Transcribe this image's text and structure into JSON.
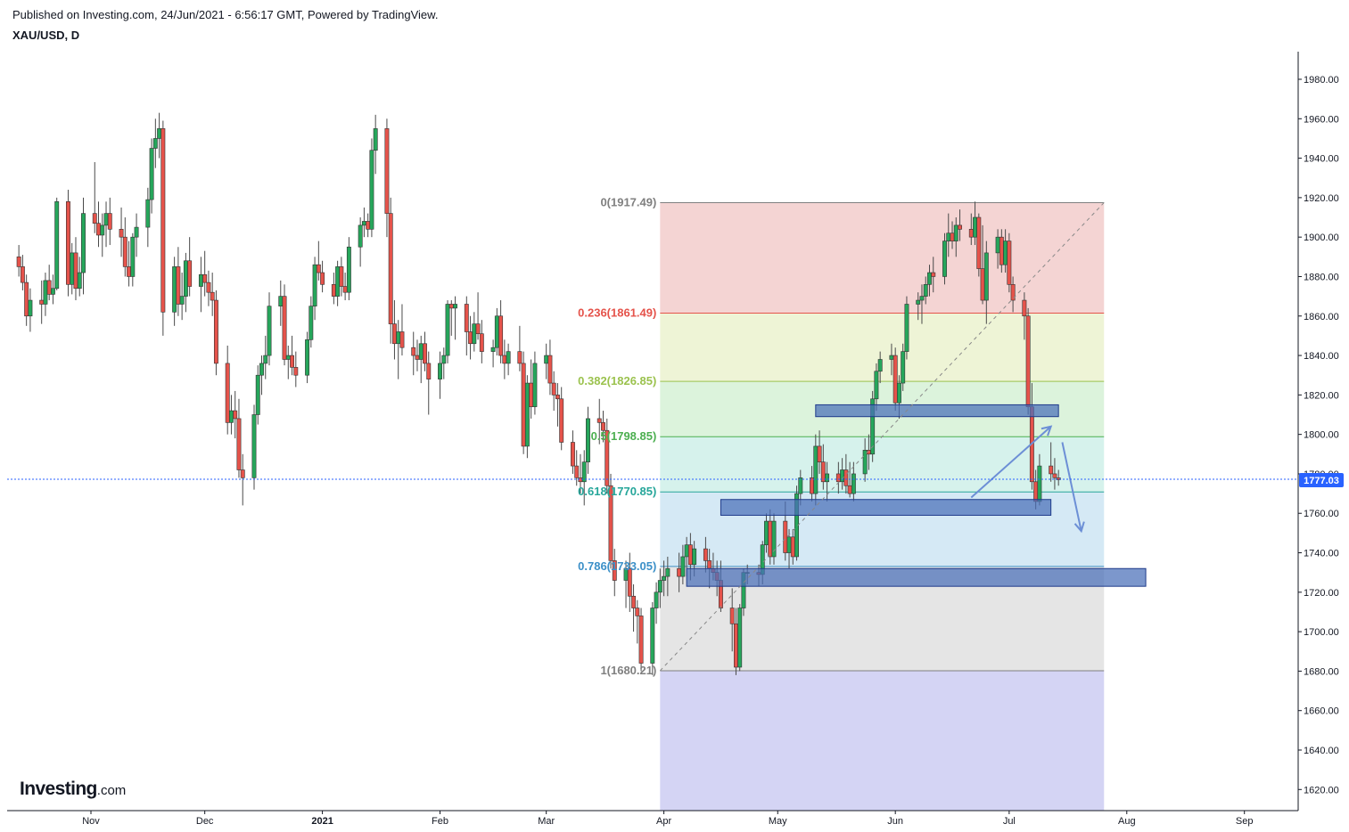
{
  "header": {
    "published": "Published on Investing.com, 24/Jun/2021 - 6:56:17 GMT, Powered by TradingView.",
    "symbol": "XAU/USD, D"
  },
  "logo": {
    "brand": "Investing",
    "tld": ".com"
  },
  "colors": {
    "up": "#26a65b",
    "down": "#e5534b",
    "wick": "#4a4a4a",
    "price_line": "#2962ff",
    "zone_fill": "#4a6fb8",
    "zone_stroke": "#1e3a8a",
    "arrow": "#6c8fd6"
  },
  "chart_data": {
    "type": "candlestick",
    "instrument": "XAU/USD",
    "interval": "D",
    "x_axis": {
      "ticks": [
        "Nov",
        "Dec",
        "2021",
        "Feb",
        "Mar",
        "Apr",
        "May",
        "Jun",
        "Jul",
        "Aug",
        "Sep"
      ]
    },
    "y_axis": {
      "range": [
        1612,
        1996
      ],
      "ticks": [
        "1620.00",
        "1640.00",
        "1660.00",
        "1680.00",
        "1700.00",
        "1720.00",
        "1740.00",
        "1760.00",
        "1780.00",
        "1800.00",
        "1820.00",
        "1840.00",
        "1860.00",
        "1880.00",
        "1900.00",
        "1920.00",
        "1940.00",
        "1960.00",
        "1980.00"
      ]
    },
    "last_price": {
      "value": 1777.03,
      "label": "1777.03"
    },
    "fibonacci": {
      "from": "2021-03-31",
      "to": "2021-07-26",
      "levels": [
        {
          "label": "0(1917.49)",
          "ratio": 0,
          "price": 1917.49,
          "color": "#808080",
          "fill": "#f4d4d3"
        },
        {
          "label": "0.236(1861.49)",
          "ratio": 0.236,
          "price": 1861.49,
          "color": "#e5534b",
          "fill": "#eef4d6"
        },
        {
          "label": "0.382(1826.85)",
          "ratio": 0.382,
          "price": 1826.85,
          "color": "#9bc24e",
          "fill": "#dcf3dc"
        },
        {
          "label": "0.5(1798.85)",
          "ratio": 0.5,
          "price": 1798.85,
          "color": "#4caf50",
          "fill": "#d6f2ec"
        },
        {
          "label": "0.618(1770.85)",
          "ratio": 0.618,
          "price": 1770.85,
          "color": "#26a69a",
          "fill": "#d5e9f5"
        },
        {
          "label": "0.786(1733.05)",
          "ratio": 0.786,
          "price": 1733.05,
          "color": "#3c90c8",
          "fill": "#e5e5e5"
        },
        {
          "label": "1(1680.21)",
          "ratio": 1,
          "price": 1680.21,
          "color": "#808080",
          "fill": "#d4d4f4"
        }
      ]
    },
    "zones": [
      {
        "from": "2021-05-11",
        "to": "2021-07-14",
        "low": 1809,
        "high": 1815
      },
      {
        "from": "2021-04-16",
        "to": "2021-07-12",
        "low": 1759,
        "high": 1767
      },
      {
        "from": "2021-04-07",
        "to": "2021-08-06",
        "low": 1723,
        "high": 1732
      }
    ],
    "arrows": [
      {
        "from_date": "2021-06-21",
        "from_price": 1768,
        "to_date": "2021-07-12",
        "to_price": 1804
      },
      {
        "from_date": "2021-07-15",
        "to_date": "2021-07-20",
        "from_price": 1796,
        "to_price": 1751
      }
    ],
    "series_start_date": "2020-10-13",
    "candles": [
      [
        1890,
        1896,
        1880,
        1885
      ],
      [
        1885,
        1891,
        1873,
        1877
      ],
      [
        1877,
        1881,
        1855,
        1860
      ],
      [
        1860,
        1874,
        1852,
        1868
      ],
      [
        1868,
        1878,
        1856,
        1866
      ],
      [
        1866,
        1882,
        1860,
        1878
      ],
      [
        1878,
        1886,
        1868,
        1871
      ],
      [
        1871,
        1881,
        1866,
        1874
      ],
      [
        1874,
        1920,
        1873,
        1918
      ],
      [
        1918,
        1924,
        1870,
        1876
      ],
      [
        1876,
        1897,
        1871,
        1892
      ],
      [
        1892,
        1900,
        1868,
        1874
      ],
      [
        1874,
        1890,
        1870,
        1882
      ],
      [
        1882,
        1920,
        1871,
        1912
      ],
      [
        1912,
        1938,
        1902,
        1907
      ],
      [
        1907,
        1918,
        1895,
        1901
      ],
      [
        1901,
        1912,
        1890,
        1906
      ],
      [
        1906,
        1918,
        1895,
        1912
      ],
      [
        1912,
        1920,
        1896,
        1904
      ],
      [
        1904,
        1915,
        1890,
        1900
      ],
      [
        1900,
        1910,
        1880,
        1885
      ],
      [
        1885,
        1898,
        1875,
        1880
      ],
      [
        1880,
        1902,
        1875,
        1900
      ],
      [
        1900,
        1912,
        1890,
        1905
      ],
      [
        1905,
        1925,
        1895,
        1919
      ],
      [
        1919,
        1950,
        1912,
        1945
      ],
      [
        1945,
        1960,
        1935,
        1950
      ],
      [
        1950,
        1963,
        1940,
        1955
      ],
      [
        1955,
        1959,
        1850,
        1862
      ],
      [
        1862,
        1890,
        1855,
        1885
      ],
      [
        1885,
        1895,
        1860,
        1866
      ],
      [
        1866,
        1882,
        1858,
        1870
      ],
      [
        1870,
        1892,
        1862,
        1888
      ],
      [
        1888,
        1900,
        1870,
        1875
      ],
      [
        1875,
        1890,
        1862,
        1881
      ],
      [
        1881,
        1893,
        1870,
        1877
      ],
      [
        1877,
        1883,
        1865,
        1872
      ],
      [
        1872,
        1882,
        1860,
        1868
      ],
      [
        1868,
        1873,
        1830,
        1836
      ],
      [
        1836,
        1845,
        1800,
        1806
      ],
      [
        1806,
        1820,
        1800,
        1812
      ],
      [
        1812,
        1822,
        1798,
        1808
      ],
      [
        1808,
        1818,
        1778,
        1782
      ],
      [
        1782,
        1790,
        1764,
        1778
      ],
      [
        1778,
        1815,
        1772,
        1810
      ],
      [
        1810,
        1835,
        1805,
        1830
      ],
      [
        1830,
        1840,
        1820,
        1836
      ],
      [
        1836,
        1850,
        1828,
        1840
      ],
      [
        1840,
        1872,
        1835,
        1865
      ],
      [
        1865,
        1878,
        1855,
        1870
      ],
      [
        1870,
        1876,
        1835,
        1838
      ],
      [
        1838,
        1845,
        1828,
        1840
      ],
      [
        1840,
        1850,
        1830,
        1834
      ],
      [
        1834,
        1842,
        1824,
        1830
      ],
      [
        1830,
        1852,
        1826,
        1848
      ],
      [
        1848,
        1870,
        1844,
        1865
      ],
      [
        1865,
        1890,
        1858,
        1886
      ],
      [
        1886,
        1898,
        1878,
        1882
      ],
      [
        1882,
        1888,
        1872,
        1876
      ],
      [
        1876,
        1882,
        1866,
        1870
      ],
      [
        1870,
        1888,
        1865,
        1885
      ],
      [
        1885,
        1890,
        1870,
        1875
      ],
      [
        1875,
        1882,
        1868,
        1872
      ],
      [
        1872,
        1900,
        1868,
        1895
      ],
      [
        1895,
        1910,
        1885,
        1906
      ],
      [
        1906,
        1915,
        1900,
        1908
      ],
      [
        1908,
        1912,
        1900,
        1904
      ],
      [
        1904,
        1950,
        1900,
        1944
      ],
      [
        1944,
        1962,
        1932,
        1955
      ],
      [
        1955,
        1960,
        1900,
        1912
      ],
      [
        1912,
        1920,
        1846,
        1856
      ],
      [
        1856,
        1868,
        1838,
        1846
      ],
      [
        1846,
        1858,
        1828,
        1852
      ],
      [
        1852,
        1866,
        1840,
        1844
      ],
      [
        1844,
        1852,
        1830,
        1840
      ],
      [
        1840,
        1848,
        1832,
        1838
      ],
      [
        1838,
        1850,
        1826,
        1846
      ],
      [
        1846,
        1852,
        1832,
        1836
      ],
      [
        1836,
        1842,
        1810,
        1828
      ],
      [
        1828,
        1842,
        1818,
        1836
      ],
      [
        1836,
        1844,
        1828,
        1840
      ],
      [
        1840,
        1868,
        1836,
        1866
      ],
      [
        1866,
        1868,
        1850,
        1864
      ],
      [
        1864,
        1870,
        1848,
        1866
      ],
      [
        1866,
        1870,
        1840,
        1852
      ],
      [
        1852,
        1860,
        1838,
        1846
      ],
      [
        1846,
        1862,
        1842,
        1856
      ],
      [
        1856,
        1872,
        1848,
        1851
      ],
      [
        1851,
        1858,
        1836,
        1842
      ],
      [
        1842,
        1848,
        1834,
        1844
      ],
      [
        1844,
        1864,
        1840,
        1860
      ],
      [
        1860,
        1868,
        1836,
        1840
      ],
      [
        1840,
        1848,
        1828,
        1836
      ],
      [
        1836,
        1846,
        1830,
        1842
      ],
      [
        1842,
        1855,
        1832,
        1836
      ],
      [
        1836,
        1842,
        1790,
        1794
      ],
      [
        1794,
        1830,
        1788,
        1826
      ],
      [
        1826,
        1838,
        1808,
        1814
      ],
      [
        1814,
        1842,
        1810,
        1836
      ],
      [
        1836,
        1846,
        1828,
        1840
      ],
      [
        1840,
        1848,
        1820,
        1826
      ],
      [
        1826,
        1832,
        1812,
        1820
      ],
      [
        1820,
        1826,
        1804,
        1818
      ],
      [
        1818,
        1824,
        1792,
        1796
      ],
      [
        1796,
        1802,
        1780,
        1784
      ],
      [
        1784,
        1792,
        1774,
        1778
      ],
      [
        1778,
        1790,
        1770,
        1776
      ],
      [
        1776,
        1792,
        1764,
        1786
      ],
      [
        1786,
        1814,
        1780,
        1808
      ],
      [
        1808,
        1818,
        1795,
        1806
      ],
      [
        1806,
        1812,
        1796,
        1802
      ],
      [
        1802,
        1808,
        1770,
        1774
      ],
      [
        1774,
        1780,
        1732,
        1736
      ],
      [
        1736,
        1742,
        1718,
        1726
      ],
      [
        1726,
        1736,
        1712,
        1732
      ],
      [
        1732,
        1740,
        1710,
        1718
      ],
      [
        1718,
        1724,
        1700,
        1712
      ],
      [
        1712,
        1716,
        1694,
        1708
      ],
      [
        1708,
        1712,
        1680,
        1684
      ],
      [
        1684,
        1715,
        1678,
        1712
      ],
      [
        1712,
        1725,
        1704,
        1720
      ],
      [
        1720,
        1732,
        1712,
        1726
      ],
      [
        1726,
        1736,
        1718,
        1728
      ],
      [
        1728,
        1738,
        1718,
        1732
      ],
      [
        1732,
        1740,
        1720,
        1728
      ],
      [
        1728,
        1744,
        1724,
        1738
      ],
      [
        1738,
        1748,
        1728,
        1744
      ],
      [
        1744,
        1750,
        1726,
        1734
      ],
      [
        1734,
        1746,
        1728,
        1742
      ],
      [
        1742,
        1748,
        1730,
        1736
      ],
      [
        1736,
        1742,
        1722,
        1732
      ],
      [
        1732,
        1740,
        1726,
        1730
      ],
      [
        1730,
        1736,
        1718,
        1726
      ],
      [
        1726,
        1736,
        1710,
        1712
      ],
      [
        1712,
        1722,
        1690,
        1704
      ],
      [
        1704,
        1712,
        1678,
        1682
      ],
      [
        1682,
        1714,
        1680,
        1712
      ],
      [
        1712,
        1732,
        1708,
        1730
      ],
      [
        1730,
        1734,
        1724,
        1730
      ],
      [
        1730,
        1734,
        1723,
        1729
      ],
      [
        1729,
        1746,
        1724,
        1744
      ],
      [
        1744,
        1760,
        1740,
        1756
      ],
      [
        1756,
        1762,
        1734,
        1738
      ],
      [
        1738,
        1760,
        1734,
        1756
      ],
      [
        1756,
        1766,
        1736,
        1740
      ],
      [
        1740,
        1752,
        1732,
        1748
      ],
      [
        1748,
        1752,
        1734,
        1738
      ],
      [
        1738,
        1774,
        1736,
        1770
      ],
      [
        1770,
        1782,
        1764,
        1778
      ],
      [
        1778,
        1784,
        1766,
        1770
      ],
      [
        1770,
        1800,
        1764,
        1794
      ],
      [
        1794,
        1802,
        1780,
        1786
      ],
      [
        1786,
        1795,
        1772,
        1776
      ],
      [
        1776,
        1786,
        1766,
        1780
      ],
      [
        1780,
        1786,
        1770,
        1776
      ],
      [
        1776,
        1788,
        1772,
        1782
      ],
      [
        1782,
        1790,
        1770,
        1774
      ],
      [
        1774,
        1786,
        1768,
        1770
      ],
      [
        1770,
        1786,
        1766,
        1780
      ],
      [
        1780,
        1798,
        1776,
        1792
      ],
      [
        1792,
        1800,
        1782,
        1790
      ],
      [
        1790,
        1822,
        1786,
        1818
      ],
      [
        1818,
        1836,
        1812,
        1832
      ],
      [
        1832,
        1842,
        1826,
        1838
      ],
      [
        1838,
        1846,
        1830,
        1840
      ],
      [
        1840,
        1844,
        1812,
        1816
      ],
      [
        1816,
        1830,
        1808,
        1826
      ],
      [
        1826,
        1846,
        1822,
        1842
      ],
      [
        1842,
        1870,
        1838,
        1866
      ],
      [
        1866,
        1872,
        1858,
        1868
      ],
      [
        1868,
        1876,
        1856,
        1870
      ],
      [
        1870,
        1880,
        1866,
        1876
      ],
      [
        1876,
        1886,
        1870,
        1882
      ],
      [
        1882,
        1890,
        1872,
        1880
      ],
      [
        1880,
        1902,
        1876,
        1898
      ],
      [
        1898,
        1912,
        1890,
        1902
      ],
      [
        1902,
        1908,
        1894,
        1898
      ],
      [
        1898,
        1910,
        1890,
        1906
      ],
      [
        1906,
        1914,
        1898,
        1904
      ],
      [
        1904,
        1912,
        1896,
        1900
      ],
      [
        1900,
        1918,
        1896,
        1910
      ],
      [
        1910,
        1912,
        1880,
        1884
      ],
      [
        1884,
        1906,
        1866,
        1868
      ],
      [
        1868,
        1898,
        1856,
        1892
      ],
      [
        1892,
        1904,
        1884,
        1900
      ],
      [
        1900,
        1904,
        1882,
        1886
      ],
      [
        1886,
        1904,
        1882,
        1898
      ],
      [
        1898,
        1902,
        1872,
        1876
      ],
      [
        1876,
        1880,
        1862,
        1868
      ],
      [
        1868,
        1872,
        1848,
        1860
      ],
      [
        1860,
        1864,
        1810,
        1814
      ],
      [
        1814,
        1826,
        1772,
        1776
      ],
      [
        1776,
        1782,
        1762,
        1766
      ],
      [
        1766,
        1790,
        1764,
        1784
      ],
      [
        1784,
        1796,
        1776,
        1780
      ],
      [
        1780,
        1788,
        1772,
        1778
      ],
      [
        1778,
        1782,
        1774,
        1777
      ]
    ]
  }
}
